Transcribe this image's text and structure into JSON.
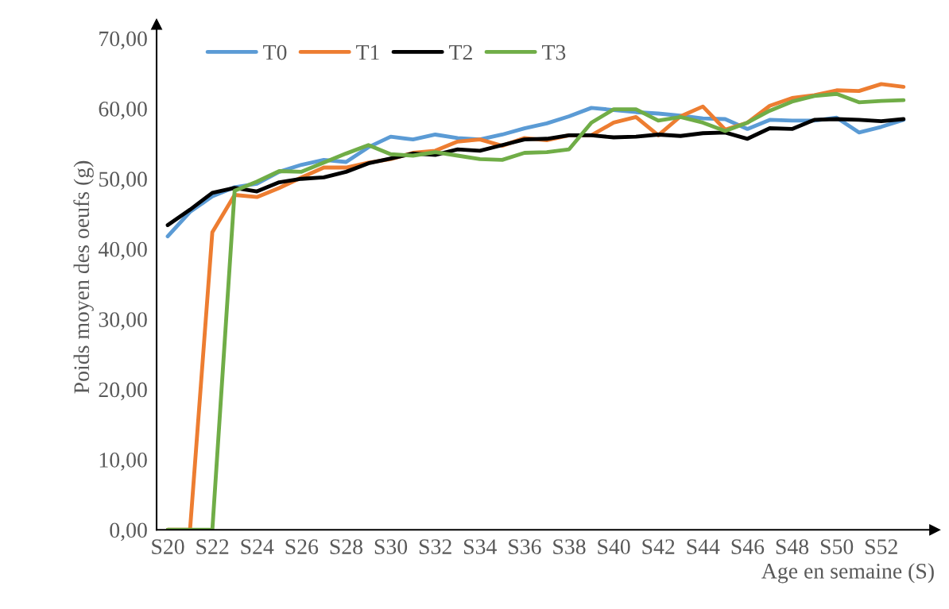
{
  "chart_data": {
    "type": "line",
    "xlabel": "Age en semaine (S)",
    "ylabel": "Poids moyen des oeufs (g)",
    "categories": [
      "S20",
      null,
      "S22",
      null,
      "S24",
      null,
      "S26",
      null,
      "S28",
      null,
      "S30",
      null,
      "S32",
      null,
      "S34",
      null,
      "S36",
      null,
      "S38",
      null,
      "S40",
      null,
      "S42",
      null,
      "S44",
      null,
      "S46",
      null,
      "S48",
      null,
      "S50",
      null,
      "S52",
      null
    ],
    "series": [
      {
        "name": "T0",
        "color": "#5b9bd5",
        "values": [
          41.8,
          45.3,
          47.5,
          48.8,
          49.3,
          51.0,
          52.0,
          52.7,
          52.4,
          54.5,
          56.0,
          55.6,
          56.3,
          55.8,
          55.6,
          56.3,
          57.2,
          57.9,
          58.9,
          60.1,
          59.8,
          59.5,
          59.3,
          59.0,
          58.6,
          58.5,
          57.1,
          58.4,
          58.3,
          58.3,
          58.7,
          56.6,
          57.4,
          58.4
        ]
      },
      {
        "name": "T1",
        "color": "#ed7d31",
        "values": [
          0,
          0,
          42.4,
          47.7,
          47.4,
          48.7,
          50.2,
          51.6,
          51.6,
          52.3,
          52.8,
          53.7,
          54.0,
          55.3,
          55.6,
          54.7,
          55.8,
          55.5,
          56.2,
          56.2,
          58.0,
          58.8,
          56.2,
          58.9,
          60.3,
          57.0,
          58.0,
          60.4,
          61.5,
          61.9,
          62.6,
          62.5,
          63.5,
          63.1
        ]
      },
      {
        "name": "T2",
        "color": "#000000",
        "values": [
          43.4,
          45.6,
          48.0,
          48.7,
          48.2,
          49.5,
          50.0,
          50.2,
          51.0,
          52.2,
          52.9,
          53.6,
          53.4,
          54.2,
          54.0,
          54.8,
          55.6,
          55.7,
          56.2,
          56.2,
          55.9,
          56.0,
          56.3,
          56.1,
          56.5,
          56.6,
          55.7,
          57.2,
          57.1,
          58.4,
          58.5,
          58.4,
          58.2,
          58.5
        ]
      },
      {
        "name": "T3",
        "color": "#70ad47",
        "values": [
          0,
          0,
          0,
          48.3,
          49.6,
          51.1,
          51.0,
          52.3,
          53.6,
          54.8,
          53.5,
          53.3,
          53.8,
          53.3,
          52.8,
          52.7,
          53.7,
          53.8,
          54.2,
          58.0,
          59.9,
          59.9,
          58.3,
          58.8,
          58.0,
          56.8,
          58.0,
          59.7,
          61.0,
          61.8,
          62.1,
          60.9,
          61.1,
          61.2
        ]
      }
    ],
    "ylim": [
      0,
      72
    ],
    "yticks": [
      {
        "value": 0,
        "label": "0,00"
      },
      {
        "value": 10,
        "label": "10,00"
      },
      {
        "value": 20,
        "label": "20,00"
      },
      {
        "value": 30,
        "label": "30,00"
      },
      {
        "value": 40,
        "label": "40,00"
      },
      {
        "value": 50,
        "label": "50,00"
      },
      {
        "value": 60,
        "label": "60,00"
      },
      {
        "value": 70,
        "label": "70,00"
      }
    ],
    "legend": "top left",
    "marker": "none",
    "line_style": "solid"
  }
}
